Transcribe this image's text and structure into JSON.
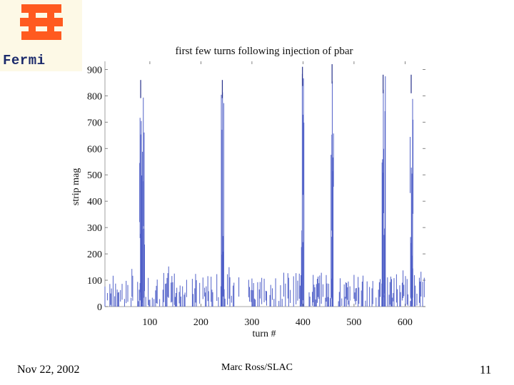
{
  "logo": {
    "text": "Fermi",
    "color": "#ff5a1f"
  },
  "footer": {
    "date": "Nov 22, 2002",
    "author": "Marc Ross/SLAC",
    "page": "11"
  },
  "chart_data": {
    "type": "bar",
    "title": "first few turns following injection of pbar",
    "xlabel": "turn #",
    "ylabel": "strip mag",
    "xlim": [
      12,
      640
    ],
    "ylim": [
      0,
      920
    ],
    "x_ticks": [
      100,
      200,
      300,
      400,
      500,
      600
    ],
    "y_ticks": [
      0,
      100,
      200,
      300,
      400,
      500,
      600,
      700,
      800,
      900
    ],
    "color": "#5060c8",
    "grid": false,
    "bursts": [
      {
        "x_start": 80,
        "x_end": 90,
        "peak": 860
      },
      {
        "x_start": 240,
        "x_end": 245,
        "peak": 860
      },
      {
        "x_start": 397,
        "x_end": 402,
        "peak": 910
      },
      {
        "x_start": 455,
        "x_end": 460,
        "peak": 920
      },
      {
        "x_start": 555,
        "x_end": 562,
        "peak": 880
      },
      {
        "x_start": 610,
        "x_end": 616,
        "peak": 880
      }
    ],
    "background_band": {
      "min": 0,
      "max": 120
    }
  }
}
